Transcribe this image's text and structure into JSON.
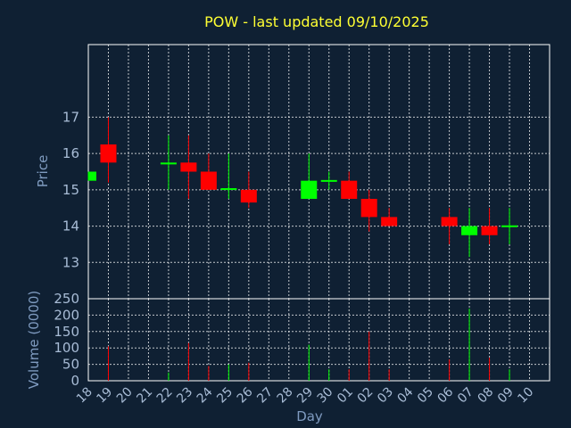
{
  "chart_data": {
    "type": "candlestick",
    "title": "POW - last updated 09/10/2025",
    "xlabel": "Day",
    "price_panel": {
      "ylabel": "Price",
      "ylim": [
        12,
        19
      ],
      "yticks": [
        13,
        14,
        15,
        16,
        17
      ]
    },
    "volume_panel": {
      "ylabel": "Volume (0000)",
      "ylim": [
        0,
        250
      ],
      "yticks": [
        0,
        50,
        100,
        150,
        200,
        250
      ]
    },
    "x_tick_labels": [
      "18",
      "19",
      "20",
      "21",
      "22",
      "23",
      "24",
      "25",
      "26",
      "27",
      "28",
      "29",
      "30",
      "01",
      "02",
      "03",
      "04",
      "05",
      "06",
      "07",
      "08",
      "09",
      "10"
    ],
    "colors": {
      "up": "#00ff00",
      "down": "#ff0000",
      "background": "#0f2033",
      "title": "#ffff33",
      "axis_text": "#a8bcd6"
    },
    "candles": [
      {
        "day": "18",
        "open": 15.25,
        "close": 15.5,
        "high": 15.5,
        "low": 15.25,
        "volume": 0
      },
      {
        "day": "19",
        "open": 16.25,
        "close": 15.75,
        "high": 17.0,
        "low": 15.2,
        "volume": 105
      },
      {
        "day": "22",
        "open": 15.7,
        "close": 15.75,
        "high": 16.5,
        "low": 15.0,
        "volume": 25
      },
      {
        "day": "23",
        "open": 15.75,
        "close": 15.5,
        "high": 16.5,
        "low": 14.75,
        "volume": 115
      },
      {
        "day": "24",
        "open": 15.5,
        "close": 15.0,
        "high": 16.0,
        "low": 15.0,
        "volume": 45
      },
      {
        "day": "25",
        "open": 14.98,
        "close": 15.02,
        "high": 16.0,
        "low": 14.75,
        "volume": 50
      },
      {
        "day": "26",
        "open": 15.0,
        "close": 14.65,
        "high": 15.5,
        "low": 14.5,
        "volume": 55
      },
      {
        "day": "29",
        "open": 14.75,
        "close": 15.25,
        "high": 16.0,
        "low": 14.75,
        "volume": 110
      },
      {
        "day": "30",
        "open": 15.22,
        "close": 15.27,
        "high": 15.5,
        "low": 15.0,
        "volume": 35
      },
      {
        "day": "01",
        "open": 15.25,
        "close": 14.75,
        "high": 15.5,
        "low": 14.75,
        "volume": 35
      },
      {
        "day": "02",
        "open": 14.75,
        "close": 14.25,
        "high": 15.0,
        "low": 13.85,
        "volume": 150
      },
      {
        "day": "03",
        "open": 14.25,
        "close": 14.0,
        "high": 14.5,
        "low": 14.0,
        "volume": 35
      },
      {
        "day": "06",
        "open": 14.25,
        "close": 14.0,
        "high": 14.5,
        "low": 13.5,
        "volume": 65
      },
      {
        "day": "07",
        "open": 13.75,
        "close": 14.0,
        "high": 14.5,
        "low": 13.15,
        "volume": 220
      },
      {
        "day": "08",
        "open": 14.0,
        "close": 13.75,
        "high": 14.5,
        "low": 13.5,
        "volume": 70
      },
      {
        "day": "09",
        "open": 13.97,
        "close": 14.02,
        "high": 14.5,
        "low": 13.5,
        "volume": 35
      }
    ]
  }
}
